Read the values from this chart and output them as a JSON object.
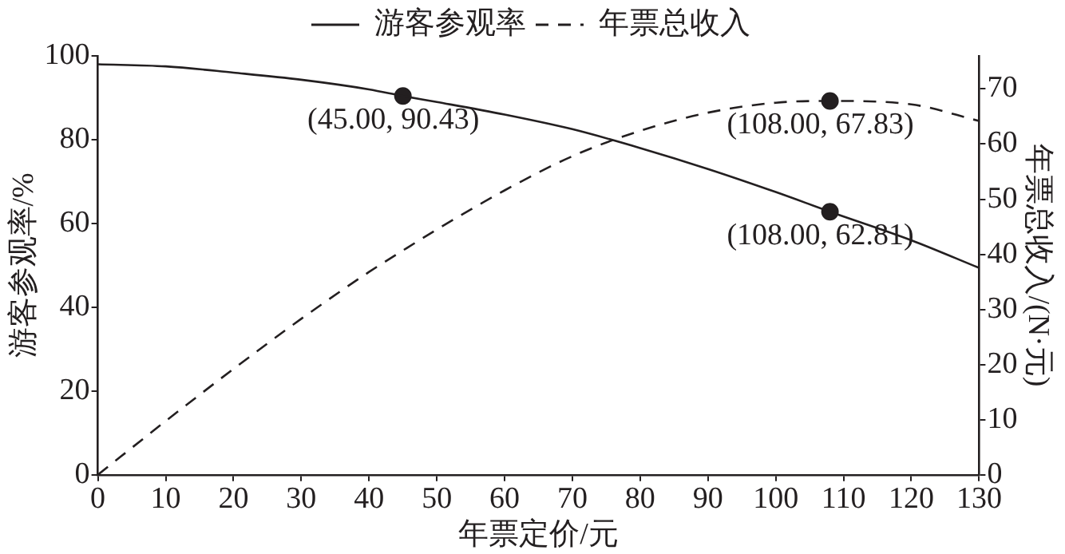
{
  "chart_data": {
    "type": "line",
    "xlabel": "年票定价/元",
    "ylabel": "游客参观率/%",
    "y2label": "年票总收入/(N·元)",
    "xlim": [
      0,
      130
    ],
    "xticks": [
      0,
      10,
      20,
      30,
      40,
      50,
      60,
      70,
      80,
      90,
      100,
      110,
      120,
      130
    ],
    "ylim": [
      0,
      100
    ],
    "yticks": [
      0,
      20,
      40,
      60,
      80,
      100
    ],
    "y2lim": [
      0,
      76
    ],
    "y2ticks": [
      0,
      10,
      20,
      30,
      40,
      50,
      60,
      70
    ],
    "grid": false,
    "legend": "top",
    "marker": "none",
    "series": [
      {
        "name": "游客参观率",
        "color": "#231f20",
        "line_style": "solid",
        "x": [
          0,
          10,
          20,
          30,
          40,
          45,
          50,
          60,
          70,
          80,
          90,
          100,
          108,
          120,
          130
        ],
        "values": [
          98,
          97.5,
          96,
          94.3,
          92,
          90.43,
          89,
          86,
          82.5,
          78,
          73,
          67.5,
          62.81,
          56,
          49.4
        ]
      },
      {
        "name": "年票总收入",
        "color": "#231f20",
        "line_style": "dashed",
        "axis": "y2",
        "x": [
          0,
          10,
          20,
          30,
          40,
          45,
          50,
          60,
          70,
          80,
          90,
          100,
          108,
          120,
          130
        ],
        "values": [
          0,
          9.75,
          19.2,
          28.3,
          36.8,
          40.7,
          44.5,
          51.6,
          57.8,
          62.4,
          65.7,
          67.5,
          67.83,
          67.2,
          64.2
        ]
      },
      {
        "type": "scatter",
        "color": "#231f20",
        "marker": "circle",
        "x": [
          45,
          108
        ],
        "values": [
          90.43,
          62.81
        ],
        "value_labels": [
          "(45.00, 90.43)",
          "(108.00, 62.81)"
        ]
      },
      {
        "type": "scatter",
        "color": "#231f20",
        "marker": "circle",
        "axis": "y2",
        "x": [
          108
        ],
        "values": [
          67.83
        ],
        "value_labels": [
          "(108.00, 67.83)"
        ]
      }
    ]
  }
}
